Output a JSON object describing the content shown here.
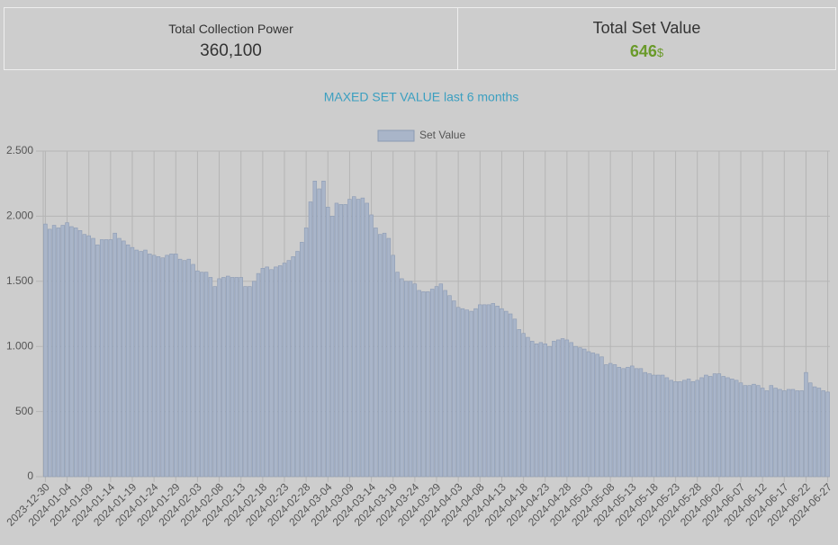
{
  "cards": [
    {
      "label": "Total Collection Power",
      "value": "360,100"
    },
    {
      "label": "Total Set Value",
      "value": "646",
      "unit": "$"
    }
  ],
  "chart_data": {
    "type": "bar",
    "title": "MAXED SET VALUE last 6 months",
    "series": [
      {
        "name": "Set Value",
        "color": "#a9b5c9",
        "values": [
          1940,
          1900,
          1930,
          1910,
          1930,
          1950,
          1920,
          1910,
          1890,
          1860,
          1850,
          1830,
          1780,
          1820,
          1820,
          1820,
          1870,
          1830,
          1810,
          1780,
          1760,
          1740,
          1730,
          1740,
          1710,
          1700,
          1690,
          1680,
          1700,
          1710,
          1710,
          1670,
          1660,
          1670,
          1630,
          1580,
          1570,
          1570,
          1530,
          1460,
          1520,
          1530,
          1540,
          1530,
          1530,
          1530,
          1460,
          1460,
          1500,
          1560,
          1600,
          1610,
          1590,
          1610,
          1620,
          1640,
          1660,
          1690,
          1730,
          1800,
          1910,
          2110,
          2270,
          2210,
          2270,
          2070,
          2000,
          2100,
          2090,
          2090,
          2130,
          2150,
          2130,
          2140,
          2100,
          2010,
          1910,
          1860,
          1870,
          1830,
          1700,
          1570,
          1520,
          1500,
          1500,
          1480,
          1430,
          1420,
          1420,
          1440,
          1460,
          1480,
          1430,
          1390,
          1350,
          1300,
          1290,
          1280,
          1270,
          1290,
          1320,
          1320,
          1320,
          1330,
          1310,
          1290,
          1270,
          1250,
          1210,
          1130,
          1100,
          1070,
          1040,
          1020,
          1030,
          1020,
          1000,
          1040,
          1050,
          1060,
          1050,
          1030,
          1000,
          990,
          980,
          960,
          950,
          940,
          920,
          860,
          870,
          860,
          840,
          830,
          840,
          850,
          830,
          830,
          800,
          790,
          780,
          780,
          780,
          760,
          740,
          730,
          730,
          740,
          750,
          730,
          740,
          760,
          780,
          770,
          790,
          790,
          770,
          760,
          750,
          740,
          720,
          700,
          700,
          710,
          700,
          680,
          660,
          700,
          680,
          670,
          660,
          670,
          670,
          660,
          660,
          800,
          720,
          690,
          680,
          660,
          650
        ]
      }
    ],
    "categories": [
      "2023-12-30",
      null,
      null,
      null,
      null,
      "2024-01-04",
      null,
      null,
      null,
      null,
      "2024-01-09",
      null,
      null,
      null,
      null,
      "2024-01-14",
      null,
      null,
      null,
      null,
      "2024-01-19",
      null,
      null,
      null,
      null,
      "2024-01-24",
      null,
      null,
      null,
      null,
      "2024-01-29",
      null,
      null,
      null,
      null,
      "2024-02-03",
      null,
      null,
      null,
      null,
      "2024-02-08",
      null,
      null,
      null,
      null,
      "2024-02-13",
      null,
      null,
      null,
      null,
      "2024-02-18",
      null,
      null,
      null,
      null,
      "2024-02-23",
      null,
      null,
      null,
      null,
      "2024-02-28",
      null,
      null,
      null,
      null,
      "2024-03-04",
      null,
      null,
      null,
      null,
      "2024-03-09",
      null,
      null,
      null,
      null,
      "2024-03-14",
      null,
      null,
      null,
      null,
      "2024-03-19",
      null,
      null,
      null,
      null,
      "2024-03-24",
      null,
      null,
      null,
      null,
      "2024-03-29",
      null,
      null,
      null,
      null,
      "2024-04-03",
      null,
      null,
      null,
      null,
      "2024-04-08",
      null,
      null,
      null,
      null,
      "2024-04-13",
      null,
      null,
      null,
      null,
      "2024-04-18",
      null,
      null,
      null,
      null,
      "2024-04-23",
      null,
      null,
      null,
      null,
      "2024-04-28",
      null,
      null,
      null,
      null,
      "2024-05-03",
      null,
      null,
      null,
      null,
      "2024-05-08",
      null,
      null,
      null,
      null,
      "2024-05-13",
      null,
      null,
      null,
      null,
      "2024-05-18",
      null,
      null,
      null,
      null,
      "2024-05-23",
      null,
      null,
      null,
      null,
      "2024-05-28",
      null,
      null,
      null,
      null,
      "2024-06-02",
      null,
      null,
      null,
      null,
      "2024-06-07",
      null,
      null,
      null,
      null,
      "2024-06-12",
      null,
      null,
      null,
      null,
      "2024-06-17",
      null,
      null,
      null,
      null,
      "2024-06-22",
      null,
      null,
      null,
      null,
      "2024-06-27"
    ],
    "ylim": [
      0,
      2500
    ],
    "yticks": [
      0,
      500,
      {
        "value": 1000,
        "label": "1.000"
      },
      {
        "value": 1500,
        "label": "1.500"
      },
      {
        "value": 2000,
        "label": "2.000"
      },
      {
        "value": 2500,
        "label": "2.500"
      }
    ],
    "grid": true,
    "legend": "top"
  }
}
